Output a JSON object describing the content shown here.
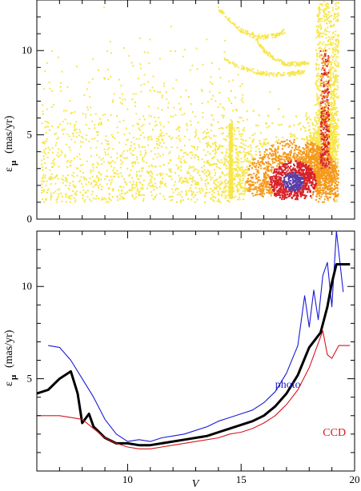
{
  "chart_data": [
    {
      "type": "scatter",
      "xlabel": "",
      "ylabel": "ε_μ  (mas/yr)",
      "ylabel_parts": {
        "symbol": "ε",
        "subscript": "μ",
        "units": "(mas/yr)"
      },
      "xlim": [
        6,
        20
      ],
      "ylim": [
        0,
        13
      ],
      "xticks": [
        10,
        15,
        20
      ],
      "yticks": [
        0,
        5,
        10
      ],
      "ytick_labels": [
        "0",
        "5",
        "10"
      ],
      "grid": false,
      "density_colors": {
        "low": "#f7e64a",
        "mid": "#f59a1c",
        "high": "#d8232a",
        "peak": "#5a3fa8"
      },
      "density_center": {
        "x": 17.3,
        "y": 2.2
      },
      "sequences": [
        {
          "x": [
            14.0,
            14.5,
            15.0,
            15.5,
            16.0,
            16.5,
            17.0
          ],
          "y": [
            12.5,
            11.8,
            11.2,
            10.9,
            10.8,
            10.9,
            11.2
          ]
        },
        {
          "x": [
            14.2,
            15.0,
            15.8,
            16.5,
            17.2,
            17.8
          ],
          "y": [
            9.5,
            9.0,
            8.7,
            8.6,
            8.6,
            8.8
          ]
        },
        {
          "x": [
            15.5,
            16.0,
            16.5,
            17.0,
            17.5,
            18.0
          ],
          "y": [
            11.0,
            10.0,
            9.5,
            9.2,
            9.2,
            9.3
          ]
        }
      ]
    },
    {
      "type": "line",
      "xlabel": "V",
      "ylabel": "ε_μ  (mas/yr)",
      "ylabel_parts": {
        "symbol": "ε",
        "subscript": "μ",
        "units": "(mas/yr)"
      },
      "xlim": [
        6,
        20
      ],
      "ylim": [
        0,
        13
      ],
      "xticks": [
        10,
        15,
        20
      ],
      "xtick_labels": [
        "10",
        "15",
        "20"
      ],
      "yticks": [
        0,
        5,
        10
      ],
      "ytick_labels": [
        "",
        "5",
        "10"
      ],
      "grid": false,
      "series": [
        {
          "name": "photo",
          "color": "#1a1ad6",
          "x": [
            6.5,
            7.0,
            7.5,
            8.0,
            8.5,
            9.0,
            9.5,
            10.0,
            10.5,
            11.0,
            11.5,
            12.0,
            12.5,
            13.0,
            13.5,
            14.0,
            14.5,
            15.0,
            15.5,
            16.0,
            16.5,
            17.0,
            17.5,
            17.8,
            18.0,
            18.2,
            18.4,
            18.6,
            18.8,
            19.0,
            19.2,
            19.5
          ],
          "y": [
            6.8,
            6.7,
            6.0,
            5.0,
            4.0,
            2.8,
            2.0,
            1.6,
            1.7,
            1.6,
            1.8,
            1.9,
            2.0,
            2.2,
            2.4,
            2.7,
            2.9,
            3.1,
            3.3,
            3.7,
            4.3,
            5.3,
            6.8,
            9.5,
            7.8,
            9.8,
            8.2,
            10.6,
            11.3,
            8.9,
            13.0,
            9.7
          ]
        },
        {
          "name": "",
          "color": "#000000",
          "x": [
            6.0,
            6.5,
            7.0,
            7.5,
            7.8,
            8.0,
            8.3,
            8.5,
            9.0,
            9.5,
            10.0,
            10.5,
            11.0,
            11.5,
            12.0,
            12.5,
            13.0,
            13.5,
            14.0,
            14.5,
            15.0,
            15.5,
            16.0,
            16.5,
            17.0,
            17.5,
            18.0,
            18.5,
            18.8,
            19.0,
            19.2,
            19.5,
            19.8
          ],
          "y": [
            4.2,
            4.4,
            5.0,
            5.4,
            4.2,
            2.6,
            3.1,
            2.4,
            1.8,
            1.5,
            1.5,
            1.4,
            1.4,
            1.5,
            1.6,
            1.7,
            1.8,
            1.9,
            2.1,
            2.3,
            2.5,
            2.7,
            3.0,
            3.5,
            4.2,
            5.2,
            6.7,
            7.5,
            8.9,
            10.2,
            11.2,
            11.2,
            11.2
          ]
        },
        {
          "name": "CCD",
          "color": "#d6161e",
          "x": [
            6.0,
            7.0,
            7.5,
            8.0,
            8.5,
            9.0,
            9.5,
            10.0,
            10.5,
            11.0,
            11.5,
            12.0,
            12.5,
            13.0,
            13.5,
            14.0,
            14.5,
            15.0,
            15.5,
            16.0,
            16.5,
            17.0,
            17.5,
            18.0,
            18.3,
            18.6,
            18.8,
            19.0,
            19.3,
            19.8
          ],
          "y": [
            3.0,
            3.0,
            2.9,
            2.8,
            2.3,
            1.8,
            1.5,
            1.3,
            1.2,
            1.2,
            1.3,
            1.4,
            1.5,
            1.6,
            1.7,
            1.8,
            2.0,
            2.1,
            2.3,
            2.6,
            3.0,
            3.6,
            4.4,
            5.6,
            6.6,
            7.6,
            6.3,
            6.1,
            6.8,
            6.8
          ]
        }
      ],
      "annotations": [
        {
          "text": "photo",
          "x": 16.5,
          "y": 4.5,
          "color": "#1a1ad6"
        },
        {
          "text": "CCD",
          "x": 18.6,
          "y": 1.9,
          "color": "#d6161e"
        }
      ]
    }
  ]
}
